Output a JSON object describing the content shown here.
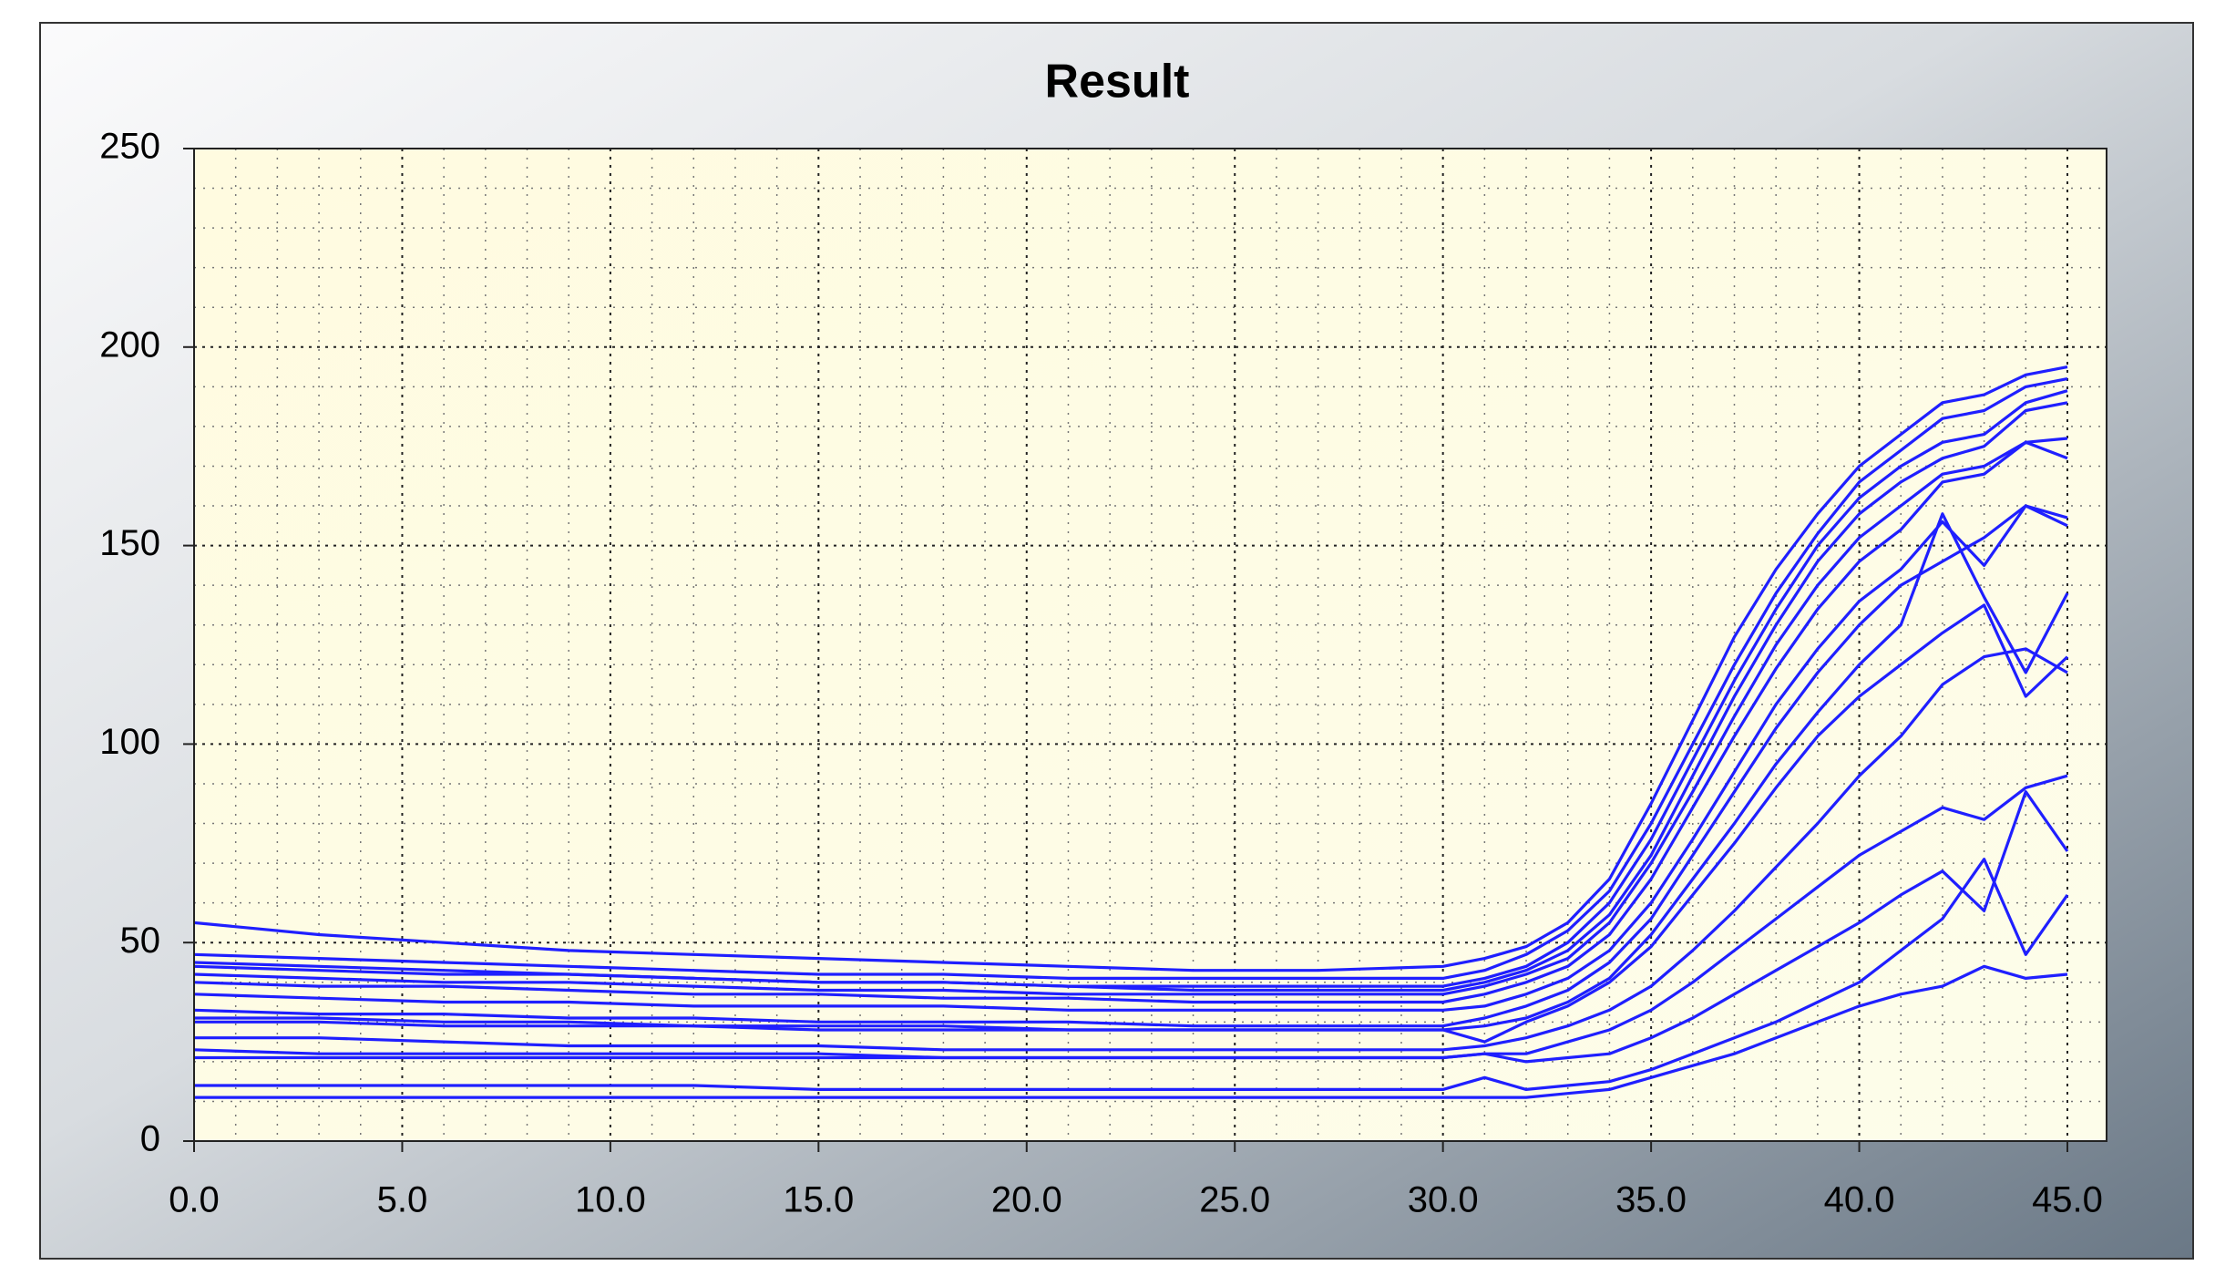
{
  "chart_data": {
    "type": "line",
    "title": "Result",
    "x": [
      0,
      3,
      6,
      9,
      12,
      15,
      18,
      21,
      24,
      27,
      30,
      31,
      32,
      33,
      34,
      35,
      36,
      37,
      38,
      39,
      40,
      41,
      42,
      43,
      44,
      45
    ],
    "color": "#1f1fff",
    "series": [
      {
        "values": [
          55,
          52,
          50,
          48,
          47,
          46,
          45,
          44,
          43,
          43,
          44,
          46,
          49,
          55,
          66,
          85,
          106,
          127,
          144,
          158,
          170,
          178,
          186,
          188,
          193,
          195
        ]
      },
      {
        "values": [
          47,
          46,
          45,
          44,
          43,
          42,
          42,
          41,
          41,
          41,
          41,
          43,
          47,
          53,
          63,
          80,
          100,
          120,
          138,
          153,
          166,
          174,
          182,
          184,
          190,
          192
        ]
      },
      {
        "values": [
          45,
          44,
          43,
          42,
          41,
          40,
          40,
          39,
          39,
          39,
          39,
          41,
          44,
          50,
          60,
          76,
          96,
          116,
          134,
          150,
          162,
          170,
          176,
          178,
          186,
          189
        ]
      },
      {
        "values": [
          44,
          43,
          42,
          42,
          41,
          40,
          40,
          39,
          38,
          38,
          38,
          40,
          43,
          48,
          57,
          72,
          92,
          112,
          130,
          146,
          158,
          166,
          172,
          175,
          184,
          186
        ]
      },
      {
        "values": [
          42,
          41,
          40,
          40,
          39,
          38,
          38,
          37,
          37,
          37,
          37,
          39,
          42,
          46,
          55,
          70,
          88,
          107,
          125,
          140,
          152,
          160,
          168,
          170,
          176,
          177
        ]
      },
      {
        "values": [
          40,
          39,
          39,
          38,
          37,
          37,
          36,
          36,
          35,
          35,
          35,
          37,
          40,
          44,
          52,
          66,
          84,
          102,
          119,
          134,
          146,
          154,
          166,
          168,
          176,
          172
        ]
      },
      {
        "values": [
          37,
          36,
          35,
          35,
          34,
          34,
          34,
          33,
          33,
          33,
          33,
          34,
          37,
          41,
          48,
          60,
          76,
          93,
          110,
          124,
          136,
          144,
          156,
          145,
          160,
          155
        ]
      },
      {
        "values": [
          33,
          32,
          32,
          31,
          31,
          30,
          30,
          30,
          29,
          29,
          29,
          31,
          34,
          38,
          45,
          56,
          72,
          88,
          104,
          118,
          130,
          140,
          146,
          152,
          160,
          157
        ]
      },
      {
        "values": [
          31,
          31,
          30,
          30,
          29,
          29,
          29,
          28,
          28,
          28,
          28,
          29,
          31,
          35,
          41,
          52,
          66,
          80,
          95,
          108,
          120,
          130,
          158,
          137,
          118,
          138
        ]
      },
      {
        "values": [
          30,
          30,
          29,
          29,
          29,
          28,
          28,
          28,
          28,
          28,
          28,
          25,
          30,
          34,
          40,
          49,
          62,
          75,
          89,
          102,
          112,
          120,
          128,
          135,
          112,
          122
        ]
      },
      {
        "values": [
          26,
          26,
          25,
          24,
          24,
          24,
          23,
          23,
          23,
          23,
          23,
          24,
          26,
          29,
          33,
          39,
          48,
          58,
          69,
          80,
          92,
          102,
          115,
          122,
          124,
          118
        ]
      },
      {
        "values": [
          23,
          22,
          22,
          22,
          22,
          22,
          21,
          21,
          21,
          21,
          21,
          22,
          22,
          25,
          28,
          33,
          40,
          48,
          56,
          64,
          72,
          78,
          84,
          81,
          89,
          92
        ]
      },
      {
        "values": [
          21,
          21,
          21,
          21,
          21,
          21,
          21,
          21,
          21,
          21,
          21,
          22,
          20,
          21,
          22,
          26,
          31,
          37,
          43,
          49,
          55,
          62,
          68,
          58,
          88,
          73
        ]
      },
      {
        "values": [
          14,
          14,
          14,
          14,
          14,
          13,
          13,
          13,
          13,
          13,
          13,
          16,
          13,
          14,
          15,
          18,
          22,
          26,
          30,
          35,
          40,
          48,
          56,
          71,
          47,
          62
        ]
      },
      {
        "values": [
          11,
          11,
          11,
          11,
          11,
          11,
          11,
          11,
          11,
          11,
          11,
          11,
          11,
          12,
          13,
          16,
          19,
          22,
          26,
          30,
          34,
          37,
          39,
          44,
          41,
          42
        ]
      }
    ],
    "xlim": [
      0,
      45
    ],
    "xticks": [
      {
        "value": 0,
        "label": "0.0"
      },
      {
        "value": 5,
        "label": "5.0"
      },
      {
        "value": 10,
        "label": "10.0"
      },
      {
        "value": 15,
        "label": "15.0"
      },
      {
        "value": 20,
        "label": "20.0"
      },
      {
        "value": 25,
        "label": "25.0"
      },
      {
        "value": 30,
        "label": "30.0"
      },
      {
        "value": 35,
        "label": "35.0"
      },
      {
        "value": 40,
        "label": "40.0"
      },
      {
        "value": 45,
        "label": "45.0"
      }
    ],
    "ylim": [
      0,
      250
    ],
    "yticks": [
      0,
      50,
      100,
      150,
      200,
      250
    ],
    "grid": true
  }
}
